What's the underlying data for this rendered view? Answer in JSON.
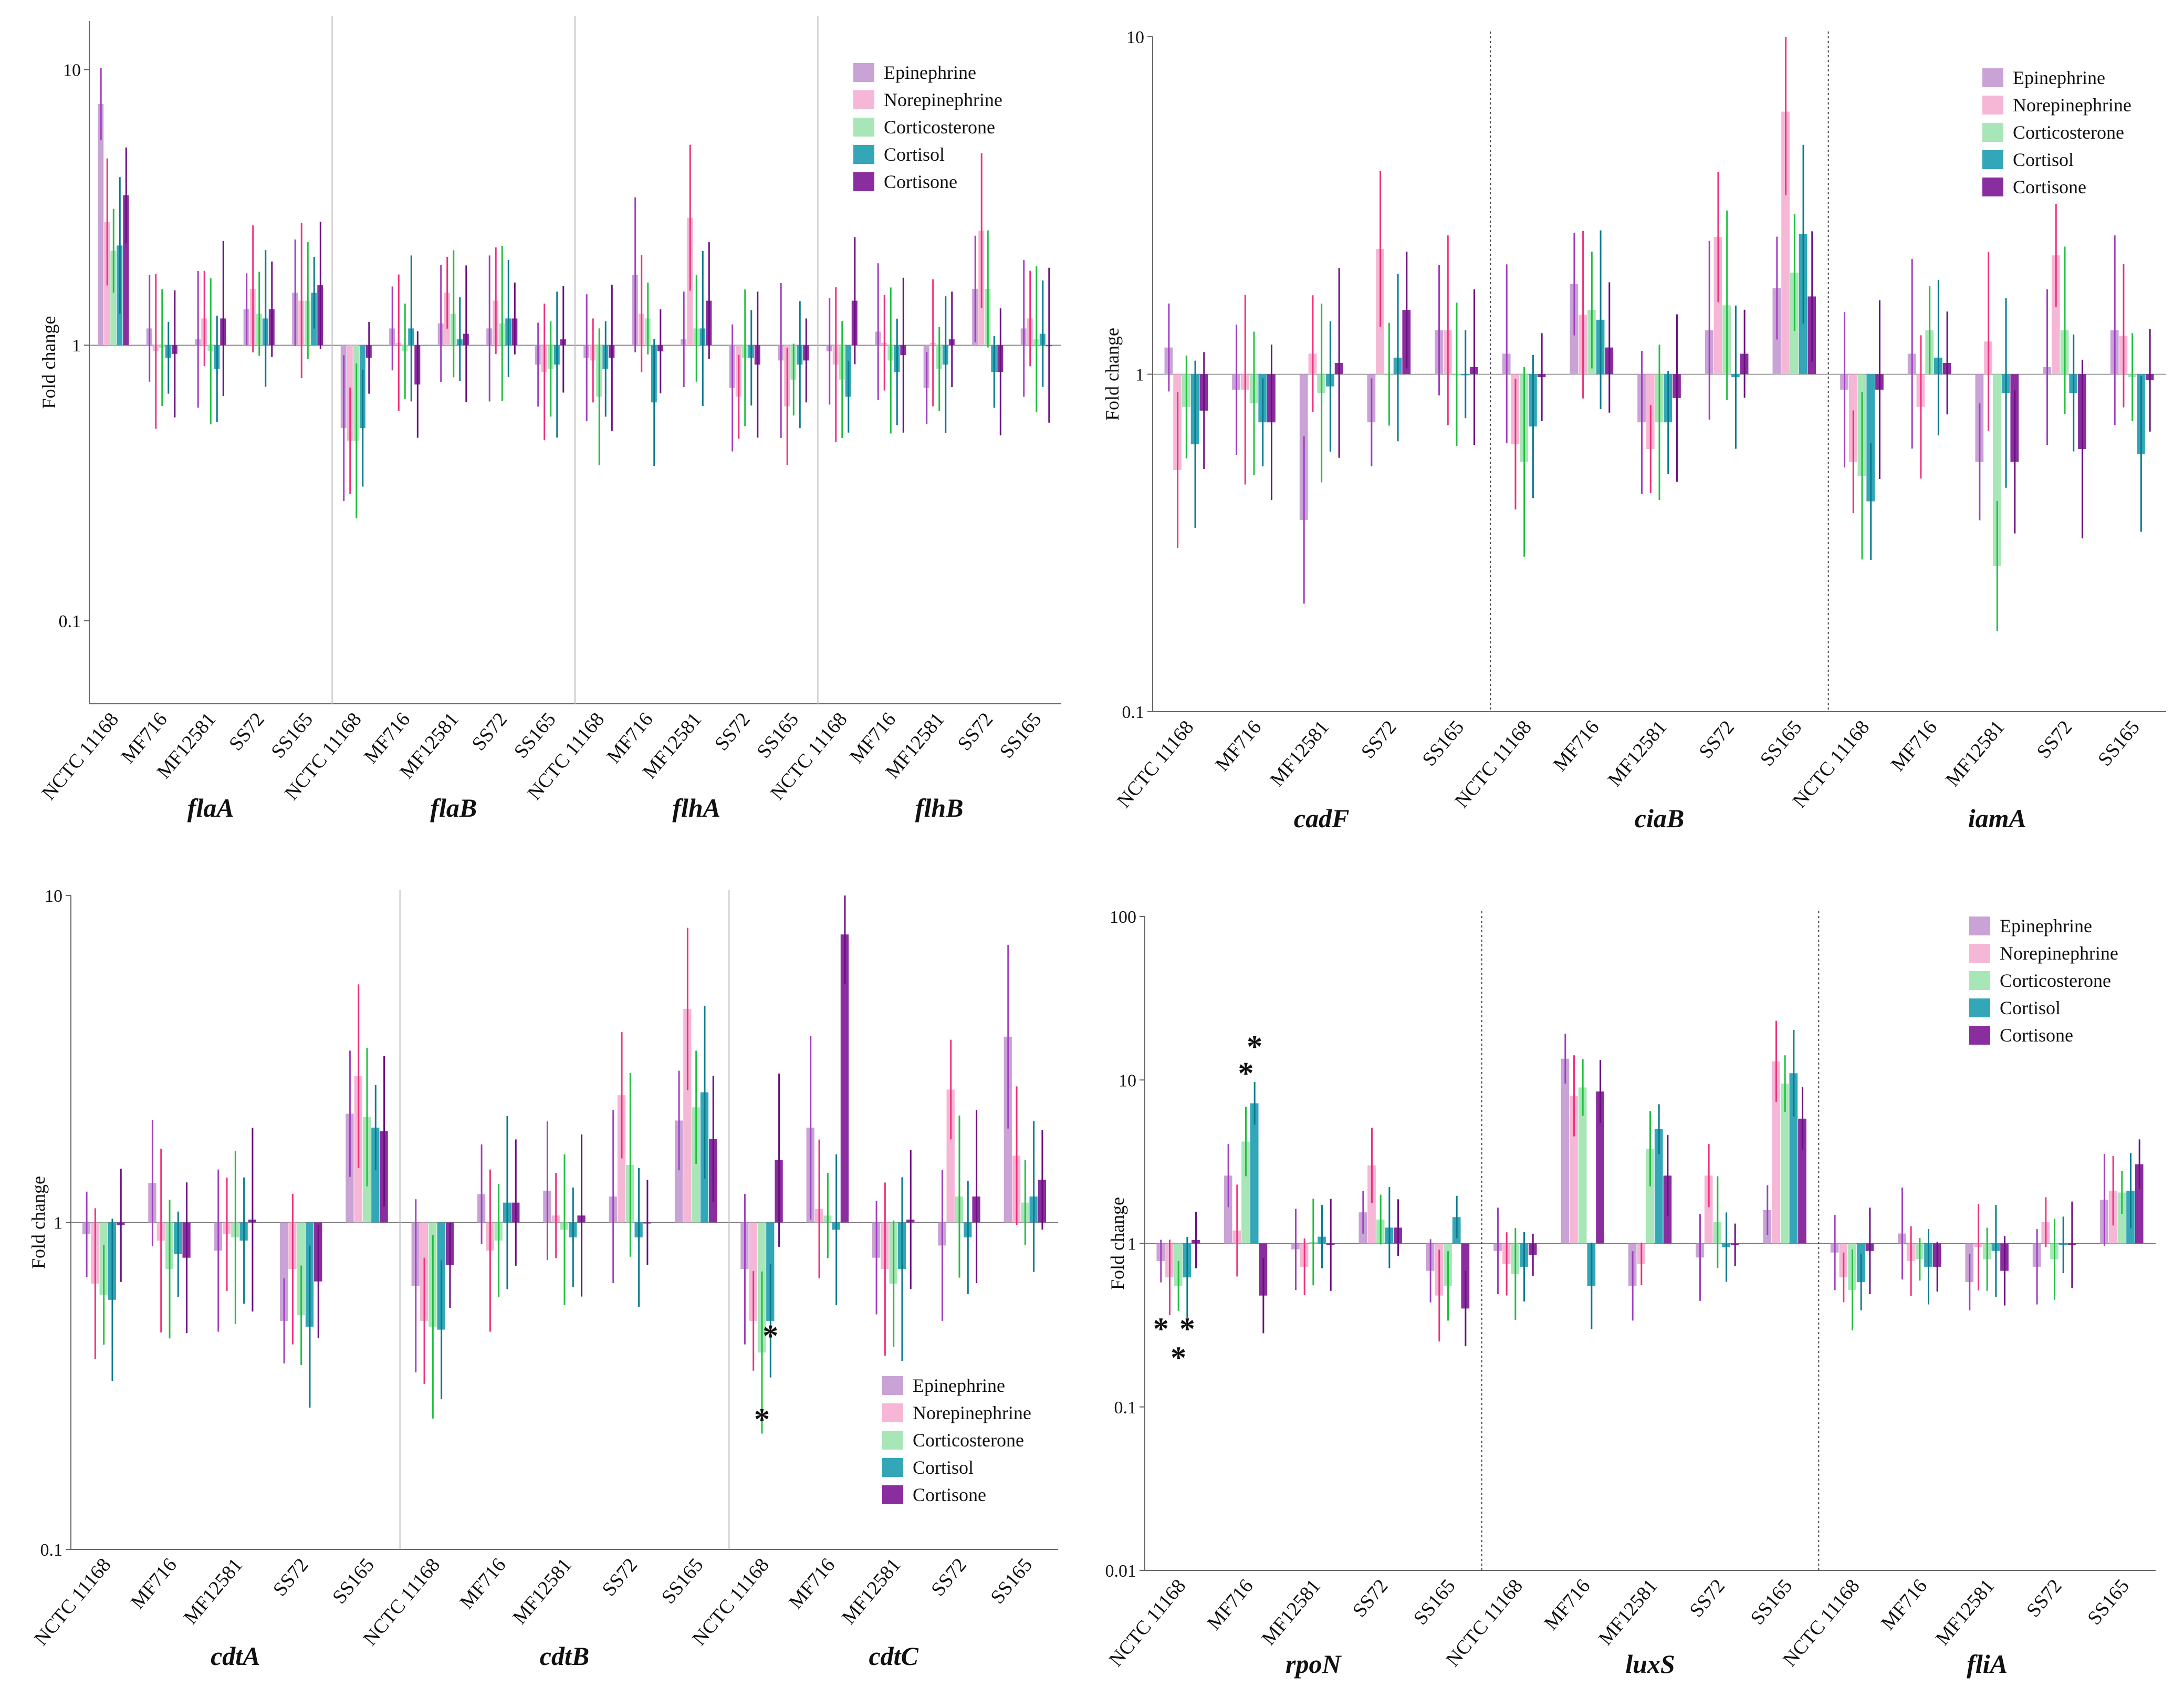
{
  "colors": {
    "Epinephrine": {
      "bar": "#c9a3d6",
      "err": "#a040c0"
    },
    "Norepinephrine": {
      "bar": "#f6b6d6",
      "err": "#f0307a"
    },
    "Corticosterone": {
      "bar": "#a8e6b8",
      "err": "#20c040"
    },
    "Cortisol": {
      "bar": "#33a6b8",
      "err": "#0a7a8e"
    },
    "Cortisone": {
      "bar": "#8a2d9e",
      "err": "#6a0f80"
    }
  },
  "chart_data": [
    {
      "type": "bar",
      "scale": "log",
      "ylabel": "Fold change",
      "ylim": [
        0.05,
        15
      ],
      "ticks": [
        {
          "v": 10,
          "t": "10"
        },
        {
          "v": 1,
          "t": "1"
        },
        {
          "v": 0.1,
          "t": "0.1"
        }
      ],
      "legend": "top-right",
      "divider": "solid",
      "strains": [
        "NCTC 11168",
        "MF716",
        "MF12581",
        "SS72",
        "SS165"
      ],
      "series_names": [
        "Epinephrine",
        "Norepinephrine",
        "Corticosterone",
        "Cortisol",
        "Cortisone"
      ],
      "genes": [
        {
          "name": "flaA",
          "values": [
            [
              7.5,
              2.8,
              2.2,
              2.3,
              3.5
            ],
            [
              1.15,
              0.95,
              0.98,
              0.9,
              0.93
            ],
            [
              1.05,
              1.25,
              0.95,
              0.82,
              1.25
            ],
            [
              1.35,
              1.6,
              1.3,
              1.25,
              1.35
            ],
            [
              1.55,
              1.45,
              1.45,
              1.55,
              1.65
            ]
          ]
        },
        {
          "name": "flaB",
          "values": [
            [
              0.5,
              0.45,
              0.45,
              0.5,
              0.9
            ],
            [
              1.15,
              1.02,
              0.95,
              1.15,
              0.72
            ],
            [
              1.2,
              1.55,
              1.3,
              1.05,
              1.1
            ],
            [
              1.15,
              1.45,
              1.2,
              1.25,
              1.25
            ],
            [
              0.85,
              0.8,
              0.82,
              0.85,
              1.05
            ]
          ]
        },
        {
          "name": "flhA",
          "values": [
            [
              0.9,
              0.88,
              0.65,
              0.82,
              0.9
            ],
            [
              1.8,
              1.3,
              1.25,
              0.62,
              0.95
            ],
            [
              1.05,
              2.9,
              1.15,
              1.15,
              1.45
            ],
            [
              0.7,
              0.65,
              0.9,
              0.9,
              0.85
            ],
            [
              0.88,
              0.6,
              0.75,
              0.85,
              0.88
            ]
          ]
        },
        {
          "name": "flhB",
          "values": [
            [
              0.95,
              0.85,
              0.75,
              0.65,
              1.45
            ],
            [
              1.12,
              1.02,
              0.88,
              0.8,
              0.92
            ],
            [
              0.7,
              1.02,
              0.82,
              0.85,
              1.05
            ],
            [
              1.6,
              2.6,
              1.6,
              0.8,
              0.8
            ],
            [
              1.15,
              1.25,
              1.05,
              1.1,
              1.0
            ]
          ]
        }
      ],
      "stars": []
    },
    {
      "type": "bar",
      "scale": "log",
      "ylabel": "Fold change",
      "ylim": [
        0.1,
        10
      ],
      "ticks": [
        {
          "v": 10,
          "t": "10"
        },
        {
          "v": 1,
          "t": "1"
        },
        {
          "v": 0.1,
          "t": "0.1"
        }
      ],
      "legend": "top-right",
      "divider": "dotted",
      "strains": [
        "NCTC 11168",
        "MF716",
        "MF12581",
        "SS72",
        "SS165"
      ],
      "series_names": [
        "Epinephrine",
        "Norepinephrine",
        "Corticosterone",
        "Cortisol",
        "Cortisone"
      ],
      "genes": [
        {
          "name": "cadF",
          "values": [
            [
              1.2,
              0.52,
              0.8,
              0.62,
              0.78
            ],
            [
              0.9,
              0.9,
              0.82,
              0.72,
              0.72
            ],
            [
              0.37,
              1.15,
              0.88,
              0.92,
              1.08
            ],
            [
              0.72,
              2.35,
              1.0,
              1.12,
              1.55
            ],
            [
              1.35,
              1.35,
              1.0,
              1.0,
              1.05
            ]
          ]
        },
        {
          "name": "ciaB",
          "values": [
            [
              1.15,
              0.62,
              0.55,
              0.7,
              0.98
            ],
            [
              1.85,
              1.5,
              1.55,
              1.45,
              1.2
            ],
            [
              0.72,
              0.6,
              0.72,
              0.72,
              0.85
            ],
            [
              1.35,
              2.55,
              1.6,
              0.98,
              1.15
            ],
            [
              1.8,
              6.0,
              2.0,
              2.6,
              1.7
            ]
          ]
        },
        {
          "name": "iamA",
          "values": [
            [
              0.9,
              0.55,
              0.5,
              0.42,
              0.9
            ],
            [
              1.15,
              0.8,
              1.35,
              1.12,
              1.08
            ],
            [
              0.55,
              1.25,
              0.27,
              0.88,
              0.55
            ],
            [
              1.05,
              2.25,
              1.35,
              0.88,
              0.6
            ],
            [
              1.35,
              1.3,
              0.98,
              0.58,
              0.96
            ]
          ]
        }
      ],
      "stars": []
    },
    {
      "type": "bar",
      "scale": "log",
      "ylabel": "Fold change",
      "ylim": [
        0.1,
        10
      ],
      "ticks": [
        {
          "v": 10,
          "t": "10"
        },
        {
          "v": 1,
          "t": "1"
        },
        {
          "v": 0.1,
          "t": "0.1"
        }
      ],
      "legend": "bottom-right",
      "divider": "solid",
      "strains": [
        "NCTC 11168",
        "MF716",
        "MF12581",
        "SS72",
        "SS165"
      ],
      "series_names": [
        "Epinephrine",
        "Norepinephrine",
        "Corticosterone",
        "Cortisol",
        "Cortisone"
      ],
      "genes": [
        {
          "name": "cdtA",
          "values": [
            [
              0.92,
              0.65,
              0.6,
              0.58,
              0.98
            ],
            [
              1.32,
              0.88,
              0.72,
              0.8,
              0.78
            ],
            [
              0.82,
              0.92,
              0.9,
              0.88,
              1.02
            ],
            [
              0.5,
              0.72,
              0.52,
              0.48,
              0.66
            ],
            [
              2.15,
              2.8,
              2.1,
              1.95,
              1.9
            ]
          ]
        },
        {
          "name": "cdtB",
          "values": [
            [
              0.64,
              0.5,
              0.48,
              0.47,
              0.74
            ],
            [
              1.22,
              0.82,
              0.88,
              1.15,
              1.15
            ],
            [
              1.25,
              1.05,
              0.95,
              0.9,
              1.05
            ],
            [
              1.2,
              2.45,
              1.5,
              0.9,
              1.0
            ],
            [
              2.05,
              4.5,
              2.25,
              2.5,
              1.8
            ]
          ]
        },
        {
          "name": "cdtC",
          "values": [
            [
              0.72,
              0.5,
              0.4,
              0.5,
              1.55
            ],
            [
              1.95,
              1.1,
              1.05,
              0.95,
              7.6
            ],
            [
              0.78,
              0.72,
              0.65,
              0.72,
              1.02
            ],
            [
              0.85,
              2.55,
              1.2,
              0.9,
              1.2
            ],
            [
              3.7,
              1.6,
              1.15,
              1.2,
              1.35
            ]
          ]
        }
      ],
      "stars": [
        {
          "gene": 2,
          "strain": 0,
          "series": 3,
          "value": 0.45,
          "label": "*"
        },
        {
          "gene": 2,
          "strain": 0,
          "series": 2,
          "value": 0.25,
          "label": "*"
        }
      ]
    },
    {
      "type": "bar",
      "scale": "log",
      "ylabel": "Fold change",
      "ylim": [
        0.01,
        100
      ],
      "ticks": [
        {
          "v": 100,
          "t": "100"
        },
        {
          "v": 10,
          "t": "10"
        },
        {
          "v": 1,
          "t": "1"
        },
        {
          "v": 0.1,
          "t": "0.1"
        },
        {
          "v": 0.01,
          "t": "0.01"
        }
      ],
      "legend": "top-right",
      "divider": "dotted",
      "strains": [
        "NCTC 11168",
        "MF716",
        "MF12581",
        "SS72",
        "SS165"
      ],
      "series_names": [
        "Epinephrine",
        "Norepinephrine",
        "Corticosterone",
        "Cortisol",
        "Cortisone"
      ],
      "genes": [
        {
          "name": "rpoN",
          "values": [
            [
              0.78,
              0.62,
              0.55,
              0.62,
              1.05
            ],
            [
              2.6,
              1.2,
              4.2,
              7.2,
              0.48
            ],
            [
              0.92,
              0.72,
              1.02,
              1.1,
              0.98
            ],
            [
              1.55,
              3.0,
              1.4,
              1.25,
              1.25
            ],
            [
              0.68,
              0.48,
              0.55,
              1.45,
              0.4
            ]
          ]
        },
        {
          "name": "luxS",
          "values": [
            [
              0.9,
              0.75,
              0.65,
              0.72,
              0.85
            ],
            [
              13.5,
              8.0,
              9.0,
              0.55,
              8.5
            ],
            [
              0.55,
              0.75,
              3.8,
              5.0,
              2.6
            ],
            [
              0.82,
              2.6,
              1.35,
              0.95,
              0.98
            ],
            [
              1.6,
              13.0,
              9.5,
              11.0,
              5.8
            ]
          ]
        },
        {
          "name": "fliA",
          "values": [
            [
              0.88,
              0.62,
              0.52,
              0.58,
              0.9
            ],
            [
              1.15,
              0.78,
              0.8,
              0.72,
              0.72
            ],
            [
              0.58,
              0.95,
              0.8,
              0.9,
              0.68
            ],
            [
              0.72,
              1.35,
              0.8,
              0.98,
              0.98
            ],
            [
              1.85,
              2.1,
              2.05,
              2.1,
              3.05
            ]
          ]
        }
      ],
      "stars": [
        {
          "gene": 0,
          "strain": 0,
          "series": 0,
          "value": 0.3,
          "label": "*"
        },
        {
          "gene": 0,
          "strain": 0,
          "series": 2,
          "value": 0.2,
          "label": "*"
        },
        {
          "gene": 0,
          "strain": 0,
          "series": 3,
          "value": 0.3,
          "label": "*"
        },
        {
          "gene": 0,
          "strain": 1,
          "series": 2,
          "value": 11,
          "label": "*"
        },
        {
          "gene": 0,
          "strain": 1,
          "series": 3,
          "value": 16,
          "label": "*"
        }
      ]
    }
  ]
}
